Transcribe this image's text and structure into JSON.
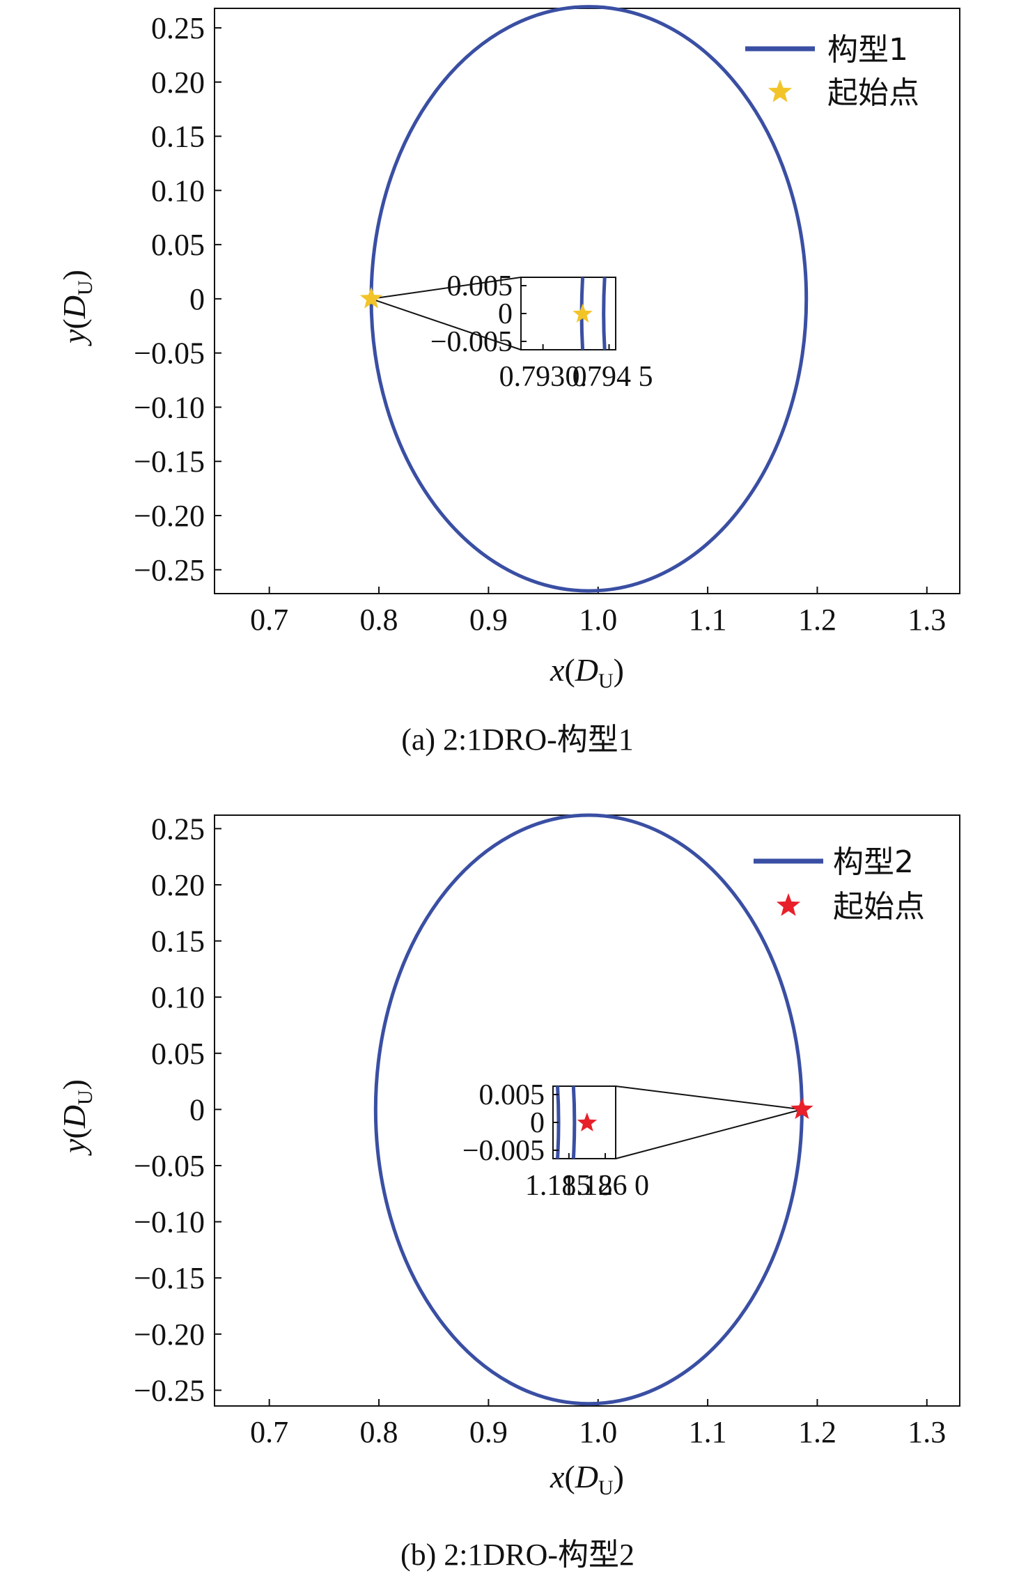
{
  "chart_data": [
    {
      "type": "line",
      "caption": "(a) 2:1DRO-构型1",
      "xlabel": "x(D_U)",
      "ylabel": "y(D_U)",
      "xlim": [
        0.65,
        1.33
      ],
      "ylim": [
        -0.272,
        0.268
      ],
      "xticks": [
        "0.7",
        "0.8",
        "0.9",
        "1.0",
        "1.1",
        "1.2",
        "1.3"
      ],
      "xtick_values": [
        0.7,
        0.8,
        0.9,
        1.0,
        1.1,
        1.2,
        1.3
      ],
      "yticks": [
        "0.25",
        "0.20",
        "0.15",
        "0.10",
        "0.05",
        "0",
        "−0.05",
        "−0.10",
        "−0.15",
        "−0.20",
        "−0.25"
      ],
      "ytick_values": [
        0.25,
        0.2,
        0.15,
        0.1,
        0.05,
        0,
        -0.05,
        -0.1,
        -0.15,
        -0.2,
        -0.25
      ],
      "series": [
        {
          "name": "构型1",
          "kind": "ellipse-orbit",
          "center_x": 0.9915,
          "center_y": 0.0,
          "semi_x": 0.1985,
          "semi_y": 0.2695,
          "color": "#3a4fa3"
        }
      ],
      "start_point": {
        "name": "起始点",
        "x": 0.793,
        "y": 0.0,
        "color": "#f2c428"
      },
      "legend": {
        "position": "top-right",
        "entries": [
          "构型1",
          "起始点"
        ]
      },
      "inset": {
        "side": "right-of-point",
        "xlim": [
          0.7925,
          0.79465
        ],
        "ylim": [
          -0.0065,
          0.0065
        ],
        "xticks": [
          "0.793 0",
          "0.794 5"
        ],
        "xtick_values": [
          0.793,
          0.7945
        ],
        "yticks": [
          "0.005",
          "0",
          "−0.005"
        ],
        "ytick_values": [
          0.005,
          0,
          -0.005
        ],
        "curve_x": [
          0.7939,
          0.7944
        ],
        "star": {
          "x": 0.7939,
          "y": -0.0001
        }
      }
    },
    {
      "type": "line",
      "caption": "(b) 2:1DRO-构型2",
      "xlabel": "x(D_U)",
      "ylabel": "y(D_U)",
      "xlim": [
        0.65,
        1.33
      ],
      "ylim": [
        -0.264,
        0.262
      ],
      "xticks": [
        "0.7",
        "0.8",
        "0.9",
        "1.0",
        "1.1",
        "1.2",
        "1.3"
      ],
      "xtick_values": [
        0.7,
        0.8,
        0.9,
        1.0,
        1.1,
        1.2,
        1.3
      ],
      "yticks": [
        "0.25",
        "0.20",
        "0.15",
        "0.10",
        "0.05",
        "0",
        "−0.05",
        "−0.10",
        "−0.15",
        "−0.20",
        "−0.25"
      ],
      "ytick_values": [
        0.25,
        0.2,
        0.15,
        0.1,
        0.05,
        0,
        -0.05,
        -0.1,
        -0.15,
        -0.2,
        -0.25
      ],
      "series": [
        {
          "name": "构型2",
          "kind": "ellipse-orbit",
          "center_x": 0.9915,
          "center_y": 0.0,
          "semi_x": 0.1945,
          "semi_y": 0.262,
          "color": "#3a4fa3"
        }
      ],
      "start_point": {
        "name": "起始点",
        "x": 1.186,
        "y": 0.0,
        "color": "#e8202a"
      },
      "legend": {
        "position": "top-right",
        "entries": [
          "构型2",
          "起始点"
        ]
      },
      "inset": {
        "side": "left-of-point",
        "xlim": [
          1.18485,
          1.18623
        ],
        "ylim": [
          -0.0065,
          0.0065
        ],
        "xticks": [
          "1.185 2",
          "1.186 0"
        ],
        "xtick_values": [
          1.1852,
          1.186
        ],
        "yticks": [
          "0.005",
          "0",
          "−0.005"
        ],
        "ytick_values": [
          0.005,
          0,
          -0.005
        ],
        "curve_x": [
          1.18495,
          1.1853
        ],
        "star": {
          "x": 1.1856,
          "y": -0.0001
        }
      }
    }
  ]
}
